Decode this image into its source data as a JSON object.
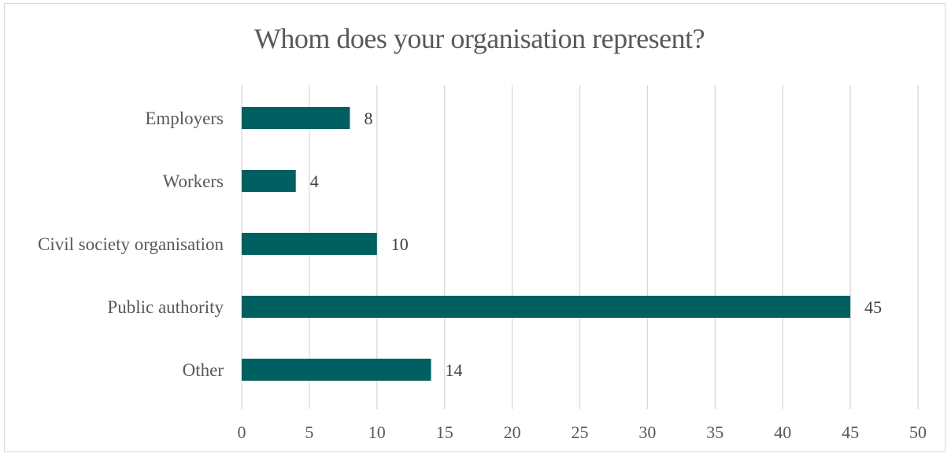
{
  "chart_data": {
    "type": "bar",
    "orientation": "horizontal",
    "title": "Whom does your organisation represent?",
    "categories": [
      "Employers",
      "Workers",
      "Civil society organisation",
      "Public authority",
      "Other"
    ],
    "values": [
      8,
      4,
      10,
      45,
      14
    ],
    "xlabel": "",
    "ylabel": "",
    "xlim": [
      0,
      50
    ],
    "xticks": [
      0,
      5,
      10,
      15,
      20,
      25,
      30,
      35,
      40,
      45,
      50
    ],
    "grid": "vertical",
    "legend": "none",
    "data_labels": true,
    "colors": {
      "bar": "#005F60",
      "grid": "#d9d9d9",
      "text": "#595959"
    }
  }
}
